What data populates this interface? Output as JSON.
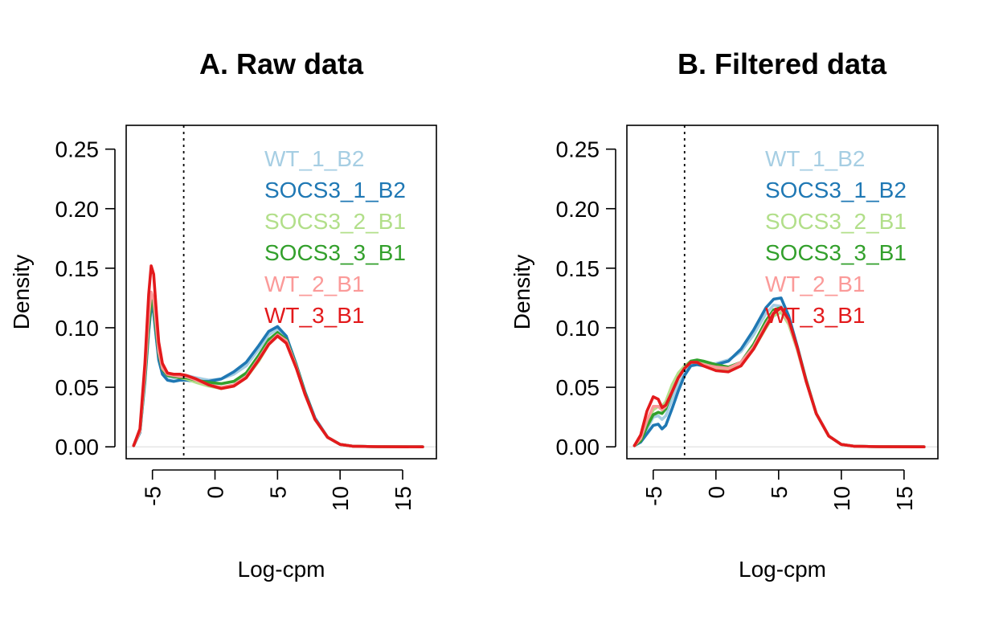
{
  "chart_data": [
    {
      "type": "line",
      "title": "A. Raw data",
      "xlabel": "Log-cpm",
      "ylabel": "Density",
      "xlim": [
        -7.1,
        17.7
      ],
      "ylim": [
        -0.01,
        0.27
      ],
      "xticks": [
        -5,
        0,
        5,
        10,
        15
      ],
      "xtick_labels": [
        "-5",
        "0",
        "5",
        "10",
        "15"
      ],
      "yticks": [
        0,
        0.05,
        0.1,
        0.15,
        0.2,
        0.25
      ],
      "ytick_labels": [
        "0.00",
        "0.05",
        "0.10",
        "0.15",
        "0.20",
        "0.25"
      ],
      "vline": -2.5,
      "legend": "top-right",
      "series": [
        {
          "name": "WT_1_B2",
          "color": "#A6CEE3",
          "x": [
            -6.5,
            -6,
            -5.6,
            -5.3,
            -5.1,
            -4.9,
            -4.7,
            -4.5,
            -4.2,
            -3.8,
            -3.3,
            -2.8,
            -2.3,
            -1.5,
            -0.5,
            0.5,
            1.5,
            2.5,
            3.5,
            4.3,
            5,
            5.7,
            6.5,
            7.2,
            8,
            9,
            10,
            11,
            13,
            16.6
          ],
          "y": [
            0.001,
            0.012,
            0.055,
            0.097,
            0.117,
            0.112,
            0.092,
            0.075,
            0.064,
            0.059,
            0.058,
            0.059,
            0.06,
            0.058,
            0.056,
            0.057,
            0.061,
            0.068,
            0.082,
            0.094,
            0.099,
            0.091,
            0.068,
            0.045,
            0.024,
            0.008,
            0.002,
            0.0005,
            0.0001,
            0
          ]
        },
        {
          "name": "SOCS3_1_B2",
          "color": "#1F78B4",
          "x": [
            -6.5,
            -6,
            -5.6,
            -5.3,
            -5.1,
            -4.9,
            -4.7,
            -4.5,
            -4.2,
            -3.8,
            -3.3,
            -2.8,
            -2.3,
            -1.5,
            -0.5,
            0.5,
            1.5,
            2.5,
            3.5,
            4.3,
            5,
            5.7,
            6.5,
            7.2,
            8,
            9,
            10,
            11,
            13,
            16.6
          ],
          "y": [
            0.001,
            0.012,
            0.055,
            0.097,
            0.118,
            0.113,
            0.092,
            0.073,
            0.061,
            0.056,
            0.055,
            0.056,
            0.056,
            0.055,
            0.055,
            0.057,
            0.063,
            0.071,
            0.085,
            0.097,
            0.101,
            0.093,
            0.069,
            0.046,
            0.024,
            0.008,
            0.002,
            0.0005,
            0.0001,
            0
          ]
        },
        {
          "name": "SOCS3_2_B1",
          "color": "#B2DF8A",
          "x": [
            -6.5,
            -6,
            -5.6,
            -5.3,
            -5.1,
            -4.9,
            -4.7,
            -4.5,
            -4.2,
            -3.8,
            -3.3,
            -2.8,
            -2.3,
            -1.5,
            -0.5,
            0.5,
            1.5,
            2.5,
            3.5,
            4.3,
            5,
            5.7,
            6.5,
            7.2,
            8,
            9,
            10,
            11,
            13,
            16.6
          ],
          "y": [
            0.001,
            0.013,
            0.06,
            0.105,
            0.127,
            0.12,
            0.1,
            0.08,
            0.066,
            0.062,
            0.06,
            0.058,
            0.057,
            0.054,
            0.051,
            0.049,
            0.051,
            0.058,
            0.072,
            0.086,
            0.093,
            0.088,
            0.067,
            0.044,
            0.023,
            0.008,
            0.002,
            0.0005,
            0.0001,
            0
          ]
        },
        {
          "name": "SOCS3_3_B1",
          "color": "#33A02C",
          "x": [
            -6.5,
            -6,
            -5.6,
            -5.3,
            -5.1,
            -4.9,
            -4.7,
            -4.5,
            -4.2,
            -3.8,
            -3.3,
            -2.8,
            -2.3,
            -1.5,
            -0.5,
            0.5,
            1.5,
            2.5,
            3.5,
            4.3,
            5,
            5.7,
            6.5,
            7.2,
            8,
            9,
            10,
            11,
            13,
            16.6
          ],
          "y": [
            0.001,
            0.013,
            0.058,
            0.102,
            0.123,
            0.118,
            0.097,
            0.078,
            0.065,
            0.06,
            0.059,
            0.058,
            0.058,
            0.056,
            0.054,
            0.053,
            0.055,
            0.062,
            0.077,
            0.09,
            0.096,
            0.09,
            0.068,
            0.045,
            0.023,
            0.008,
            0.002,
            0.0005,
            0.0001,
            0
          ]
        },
        {
          "name": "WT_2_B1",
          "color": "#FB9A99",
          "x": [
            -6.5,
            -6,
            -5.6,
            -5.3,
            -5.1,
            -4.9,
            -4.7,
            -4.5,
            -4.2,
            -3.8,
            -3.3,
            -2.8,
            -2.3,
            -1.5,
            -0.5,
            0.5,
            1.5,
            2.5,
            3.5,
            4.3,
            5,
            5.7,
            6.5,
            7.2,
            8,
            9,
            10,
            11,
            13,
            16.6
          ],
          "y": [
            0.001,
            0.013,
            0.062,
            0.11,
            0.13,
            0.124,
            0.102,
            0.08,
            0.066,
            0.061,
            0.06,
            0.059,
            0.059,
            0.056,
            0.052,
            0.05,
            0.052,
            0.059,
            0.074,
            0.087,
            0.094,
            0.089,
            0.067,
            0.044,
            0.023,
            0.008,
            0.002,
            0.0005,
            0.0001,
            0
          ]
        },
        {
          "name": "WT_3_B1",
          "color": "#E31A1C",
          "x": [
            -6.5,
            -6,
            -5.6,
            -5.3,
            -5.1,
            -4.9,
            -4.7,
            -4.5,
            -4.2,
            -3.8,
            -3.3,
            -2.8,
            -2.3,
            -1.5,
            -0.5,
            0.5,
            1.5,
            2.5,
            3.5,
            4.3,
            5,
            5.7,
            6.5,
            7.2,
            8,
            9,
            10,
            11,
            13,
            16.6
          ],
          "y": [
            0.001,
            0.015,
            0.07,
            0.128,
            0.152,
            0.145,
            0.115,
            0.088,
            0.07,
            0.062,
            0.061,
            0.061,
            0.06,
            0.057,
            0.052,
            0.049,
            0.051,
            0.058,
            0.073,
            0.086,
            0.093,
            0.087,
            0.066,
            0.044,
            0.023,
            0.008,
            0.002,
            0.0005,
            0.0001,
            0
          ]
        }
      ]
    },
    {
      "type": "line",
      "title": "B. Filtered data",
      "xlabel": "Log-cpm",
      "ylabel": "Density",
      "xlim": [
        -7.1,
        17.7
      ],
      "ylim": [
        -0.01,
        0.27
      ],
      "xticks": [
        -5,
        0,
        5,
        10,
        15
      ],
      "xtick_labels": [
        "-5",
        "0",
        "5",
        "10",
        "15"
      ],
      "yticks": [
        0,
        0.05,
        0.1,
        0.15,
        0.2,
        0.25
      ],
      "ytick_labels": [
        "0.00",
        "0.05",
        "0.10",
        "0.15",
        "0.20",
        "0.25"
      ],
      "vline": -2.5,
      "legend": "top-right",
      "series": [
        {
          "name": "WT_1_B2",
          "color": "#A6CEE3",
          "x": [
            -6.5,
            -6,
            -5.5,
            -5,
            -4.6,
            -4.3,
            -4,
            -3.5,
            -3,
            -2.5,
            -2,
            -1.5,
            -1,
            0,
            1,
            2,
            3,
            4,
            4.6,
            5.2,
            5.8,
            6.5,
            7.2,
            8,
            9,
            10,
            11,
            13,
            16.6
          ],
          "y": [
            0.001,
            0.006,
            0.015,
            0.025,
            0.026,
            0.023,
            0.026,
            0.04,
            0.052,
            0.062,
            0.069,
            0.07,
            0.069,
            0.07,
            0.073,
            0.08,
            0.094,
            0.112,
            0.119,
            0.118,
            0.105,
            0.082,
            0.055,
            0.028,
            0.009,
            0.002,
            0.0005,
            0.0001,
            0
          ]
        },
        {
          "name": "SOCS3_1_B2",
          "color": "#1F78B4",
          "x": [
            -6.5,
            -6,
            -5.5,
            -5,
            -4.6,
            -4.3,
            -4,
            -3.5,
            -3,
            -2.5,
            -2,
            -1.5,
            -1,
            0,
            1,
            2,
            3,
            4,
            4.6,
            5.2,
            5.8,
            6.5,
            7.2,
            8,
            9,
            10,
            11,
            13,
            16.6
          ],
          "y": [
            0.001,
            0.004,
            0.011,
            0.018,
            0.019,
            0.015,
            0.018,
            0.032,
            0.047,
            0.06,
            0.068,
            0.069,
            0.068,
            0.069,
            0.072,
            0.082,
            0.098,
            0.117,
            0.124,
            0.125,
            0.11,
            0.084,
            0.056,
            0.028,
            0.009,
            0.002,
            0.0005,
            0.0001,
            0
          ]
        },
        {
          "name": "SOCS3_2_B1",
          "color": "#B2DF8A",
          "x": [
            -6.5,
            -6,
            -5.5,
            -5,
            -4.6,
            -4.3,
            -4,
            -3.5,
            -3,
            -2.5,
            -2,
            -1.5,
            -1,
            0,
            1,
            2,
            3,
            4,
            4.6,
            5.2,
            5.8,
            6.5,
            7.2,
            8,
            9,
            10,
            11,
            13,
            16.6
          ],
          "y": [
            0.001,
            0.006,
            0.02,
            0.031,
            0.034,
            0.034,
            0.038,
            0.052,
            0.062,
            0.068,
            0.072,
            0.072,
            0.07,
            0.066,
            0.064,
            0.068,
            0.082,
            0.1,
            0.11,
            0.113,
            0.103,
            0.081,
            0.055,
            0.028,
            0.009,
            0.002,
            0.0005,
            0.0001,
            0
          ]
        },
        {
          "name": "SOCS3_3_B1",
          "color": "#33A02C",
          "x": [
            -6.5,
            -6,
            -5.5,
            -5,
            -4.6,
            -4.3,
            -4,
            -3.5,
            -3,
            -2.5,
            -2,
            -1.5,
            -1,
            0,
            1,
            2,
            3,
            4,
            4.6,
            5.2,
            5.8,
            6.5,
            7.2,
            8,
            9,
            10,
            11,
            13,
            16.6
          ],
          "y": [
            0.001,
            0.005,
            0.017,
            0.027,
            0.029,
            0.028,
            0.032,
            0.046,
            0.058,
            0.066,
            0.072,
            0.073,
            0.072,
            0.069,
            0.067,
            0.071,
            0.086,
            0.106,
            0.115,
            0.117,
            0.106,
            0.083,
            0.056,
            0.028,
            0.009,
            0.002,
            0.0005,
            0.0001,
            0
          ]
        },
        {
          "name": "WT_2_B1",
          "color": "#FB9A99",
          "x": [
            -6.5,
            -6,
            -5.5,
            -5,
            -4.6,
            -4.3,
            -4,
            -3.5,
            -3,
            -2.5,
            -2,
            -1.5,
            -1,
            0,
            1,
            2,
            3,
            4,
            4.6,
            5.2,
            5.8,
            6.5,
            7.2,
            8,
            9,
            10,
            11,
            13,
            16.6
          ],
          "y": [
            0.001,
            0.007,
            0.022,
            0.034,
            0.034,
            0.031,
            0.034,
            0.047,
            0.058,
            0.066,
            0.071,
            0.071,
            0.069,
            0.067,
            0.066,
            0.071,
            0.084,
            0.103,
            0.113,
            0.116,
            0.105,
            0.082,
            0.055,
            0.028,
            0.009,
            0.002,
            0.0005,
            0.0001,
            0
          ]
        },
        {
          "name": "WT_3_B1",
          "color": "#E31A1C",
          "x": [
            -6.5,
            -6,
            -5.5,
            -5,
            -4.6,
            -4.3,
            -4,
            -3.5,
            -3,
            -2.5,
            -2,
            -1.5,
            -1,
            0,
            1,
            2,
            3,
            4,
            4.6,
            5.2,
            5.8,
            6.5,
            7.2,
            8,
            9,
            10,
            11,
            13,
            16.6
          ],
          "y": [
            0.001,
            0.01,
            0.03,
            0.042,
            0.04,
            0.033,
            0.035,
            0.046,
            0.058,
            0.066,
            0.071,
            0.071,
            0.068,
            0.064,
            0.063,
            0.068,
            0.082,
            0.101,
            0.112,
            0.117,
            0.107,
            0.083,
            0.055,
            0.028,
            0.009,
            0.002,
            0.0005,
            0.0001,
            0
          ]
        }
      ]
    }
  ]
}
